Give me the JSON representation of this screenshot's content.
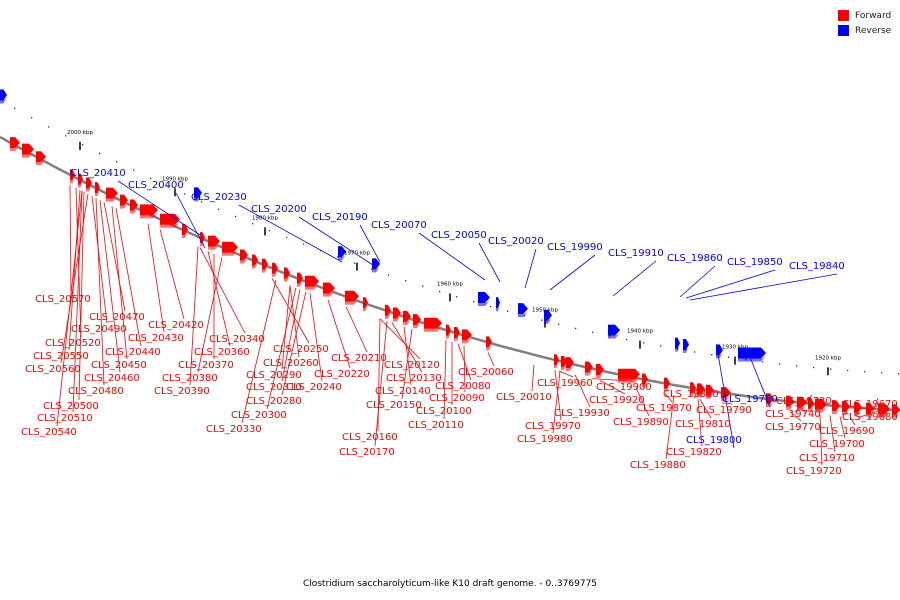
{
  "legend": {
    "forward": {
      "label": "Forward",
      "color": "#ff0000"
    },
    "reverse": {
      "label": "Reverse",
      "color": "#0000ff"
    }
  },
  "caption": "Clostridium saccharolyticum-like K10 draft genome. - 0..3769775",
  "ruler": {
    "color": "#7f7f7f",
    "unit": "kbp",
    "ticks": [
      "2000 kbp",
      "1990 kbp",
      "1980 kbp",
      "1970 kbp",
      "1960 kbp",
      "1950 kbp",
      "1940 kbp",
      "1930 kbp",
      "1920 kbp"
    ]
  },
  "reverse_labels": [
    "CLS_20410",
    "CLS_20400",
    "CLS_20230",
    "CLS_20200",
    "CLS_20190",
    "CLS_20070",
    "CLS_20050",
    "CLS_20020",
    "CLS_19990",
    "CLS_19910",
    "CLS_19860",
    "CLS_19850",
    "CLS_19840",
    "CLS_19780",
    "CLS_19800"
  ],
  "forward_labels": [
    "CLS_20570",
    "CLS_20470",
    "CLS_20520",
    "CLS_20490",
    "CLS_20550",
    "CLS_20440",
    "CLS_20560",
    "CLS_20450",
    "CLS_20460",
    "CLS_20480",
    "CLS_20500",
    "CLS_20510",
    "CLS_20540",
    "CLS_20420",
    "CLS_20430",
    "CLS_20340",
    "CLS_20360",
    "CLS_20370",
    "CLS_20380",
    "CLS_20390",
    "CLS_20250",
    "CLS_20260",
    "CLS_20310",
    "CLS_20290",
    "CLS_20280",
    "CLS_20300",
    "CLS_20330",
    "CLS_20240",
    "CLS_20220",
    "CLS_20210",
    "CLS_20120",
    "CLS_20130",
    "CLS_20140",
    "CLS_20150",
    "CLS_20160",
    "CLS_20170",
    "CLS_20060",
    "CLS_20080",
    "CLS_20090",
    "CLS_20100",
    "CLS_20110",
    "CLS_20010",
    "CLS_19960",
    "CLS_19970",
    "CLS_19980",
    "CLS_19900",
    "CLS_19920",
    "CLS_19930",
    "CLS_19890",
    "CLS_19870",
    "CLS_19880",
    "CLS_19830",
    "CLS_19810",
    "CLS_19790",
    "CLS_19820",
    "CLS_19770",
    "CLS_19730",
    "CLS_19740",
    "CLS_19670",
    "CLS_19680",
    "CLS_19690",
    "CLS_19700",
    "CLS_19710",
    "CLS_19720"
  ]
}
